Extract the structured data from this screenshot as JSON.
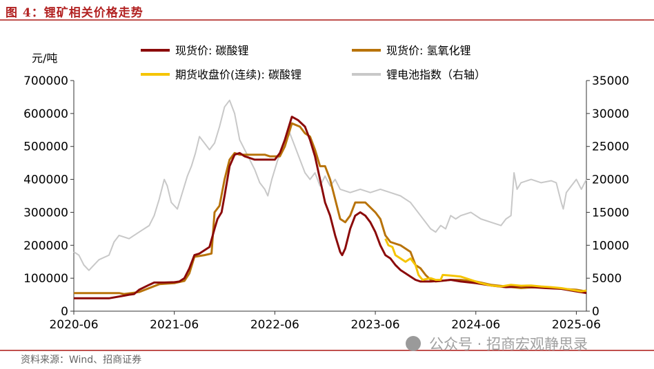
{
  "figure": {
    "title": "图 4：锂矿相关价格走势",
    "source": "资料来源：Wind、招商证券",
    "watermark": "公众号 · 招商宏观静思录"
  },
  "chart_data": {
    "type": "line",
    "y_unit_label": "元/吨",
    "ylim_left": [
      0,
      700000
    ],
    "ylim_right": [
      0,
      35000
    ],
    "left_ticks": [
      "0",
      "100000",
      "200000",
      "300000",
      "400000",
      "500000",
      "600000",
      "700000"
    ],
    "right_ticks": [
      "0",
      "5000",
      "10000",
      "15000",
      "20000",
      "25000",
      "30000",
      "35000"
    ],
    "x_range": [
      2020.45,
      2025.55
    ],
    "x_ticks": [
      {
        "label": "2020-06",
        "x": 2020.45
      },
      {
        "label": "2021-06",
        "x": 2021.45
      },
      {
        "label": "2022-06",
        "x": 2022.45
      },
      {
        "label": "2023-06",
        "x": 2023.45
      },
      {
        "label": "2024-06",
        "x": 2024.45
      },
      {
        "label": "2025-06",
        "x": 2025.45
      }
    ],
    "series": [
      {
        "name": "锂电池指数（右轴）",
        "axis": "right",
        "color": "#c8c8c8",
        "width": 2,
        "points": [
          [
            2020.45,
            9000
          ],
          [
            2020.5,
            8500
          ],
          [
            2020.55,
            7000
          ],
          [
            2020.6,
            6200
          ],
          [
            2020.7,
            7800
          ],
          [
            2020.8,
            8500
          ],
          [
            2020.85,
            10500
          ],
          [
            2020.9,
            11500
          ],
          [
            2021.0,
            11000
          ],
          [
            2021.1,
            12000
          ],
          [
            2021.2,
            13000
          ],
          [
            2021.25,
            14500
          ],
          [
            2021.3,
            17000
          ],
          [
            2021.35,
            20000
          ],
          [
            2021.38,
            19000
          ],
          [
            2021.42,
            16500
          ],
          [
            2021.48,
            15500
          ],
          [
            2021.52,
            17500
          ],
          [
            2021.58,
            20500
          ],
          [
            2021.62,
            22000
          ],
          [
            2021.66,
            24000
          ],
          [
            2021.7,
            26500
          ],
          [
            2021.75,
            25500
          ],
          [
            2021.8,
            24500
          ],
          [
            2021.85,
            25500
          ],
          [
            2021.9,
            28000
          ],
          [
            2021.95,
            31000
          ],
          [
            2022.0,
            32000
          ],
          [
            2022.05,
            30000
          ],
          [
            2022.1,
            26000
          ],
          [
            2022.15,
            24500
          ],
          [
            2022.2,
            23000
          ],
          [
            2022.25,
            21500
          ],
          [
            2022.3,
            19500
          ],
          [
            2022.35,
            18500
          ],
          [
            2022.38,
            17500
          ],
          [
            2022.42,
            20000
          ],
          [
            2022.48,
            23000
          ],
          [
            2022.55,
            25500
          ],
          [
            2022.6,
            27000
          ],
          [
            2022.65,
            25000
          ],
          [
            2022.7,
            23000
          ],
          [
            2022.75,
            21000
          ],
          [
            2022.8,
            20000
          ],
          [
            2022.85,
            21000
          ],
          [
            2022.9,
            19000
          ],
          [
            2022.95,
            20500
          ],
          [
            2023.0,
            19000
          ],
          [
            2023.05,
            20000
          ],
          [
            2023.1,
            18500
          ],
          [
            2023.2,
            18000
          ],
          [
            2023.3,
            18500
          ],
          [
            2023.4,
            18000
          ],
          [
            2023.5,
            18500
          ],
          [
            2023.6,
            18000
          ],
          [
            2023.7,
            17500
          ],
          [
            2023.8,
            16500
          ],
          [
            2023.9,
            14500
          ],
          [
            2024.0,
            12500
          ],
          [
            2024.05,
            12000
          ],
          [
            2024.1,
            13000
          ],
          [
            2024.15,
            12500
          ],
          [
            2024.2,
            14500
          ],
          [
            2024.25,
            14000
          ],
          [
            2024.3,
            14500
          ],
          [
            2024.4,
            15000
          ],
          [
            2024.5,
            14000
          ],
          [
            2024.6,
            13500
          ],
          [
            2024.7,
            13000
          ],
          [
            2024.75,
            14000
          ],
          [
            2024.8,
            14500
          ],
          [
            2024.83,
            21000
          ],
          [
            2024.86,
            18500
          ],
          [
            2024.9,
            19500
          ],
          [
            2025.0,
            20000
          ],
          [
            2025.1,
            19500
          ],
          [
            2025.2,
            19800
          ],
          [
            2025.25,
            19500
          ],
          [
            2025.3,
            16500
          ],
          [
            2025.32,
            15500
          ],
          [
            2025.35,
            18000
          ],
          [
            2025.4,
            19000
          ],
          [
            2025.45,
            20000
          ],
          [
            2025.5,
            18500
          ],
          [
            2025.55,
            20000
          ]
        ]
      },
      {
        "name": "现货价: 氢氧化锂",
        "axis": "left",
        "color": "#b8730a",
        "width": 3,
        "points": [
          [
            2020.45,
            55000
          ],
          [
            2020.9,
            55000
          ],
          [
            2020.95,
            52000
          ],
          [
            2021.1,
            58000
          ],
          [
            2021.3,
            82000
          ],
          [
            2021.45,
            85000
          ],
          [
            2021.55,
            92000
          ],
          [
            2021.6,
            115000
          ],
          [
            2021.65,
            165000
          ],
          [
            2021.75,
            170000
          ],
          [
            2021.82,
            175000
          ],
          [
            2021.85,
            300000
          ],
          [
            2021.9,
            320000
          ],
          [
            2021.95,
            400000
          ],
          [
            2022.0,
            460000
          ],
          [
            2022.05,
            480000
          ],
          [
            2022.1,
            475000
          ],
          [
            2022.3,
            475000
          ],
          [
            2022.35,
            475000
          ],
          [
            2022.4,
            470000
          ],
          [
            2022.45,
            470000
          ],
          [
            2022.5,
            470000
          ],
          [
            2022.55,
            500000
          ],
          [
            2022.62,
            570000
          ],
          [
            2022.7,
            560000
          ],
          [
            2022.75,
            540000
          ],
          [
            2022.8,
            530000
          ],
          [
            2022.85,
            490000
          ],
          [
            2022.9,
            440000
          ],
          [
            2022.95,
            440000
          ],
          [
            2023.0,
            400000
          ],
          [
            2023.05,
            340000
          ],
          [
            2023.1,
            280000
          ],
          [
            2023.15,
            270000
          ],
          [
            2023.2,
            290000
          ],
          [
            2023.25,
            330000
          ],
          [
            2023.35,
            330000
          ],
          [
            2023.45,
            300000
          ],
          [
            2023.5,
            280000
          ],
          [
            2023.55,
            230000
          ],
          [
            2023.6,
            210000
          ],
          [
            2023.7,
            200000
          ],
          [
            2023.8,
            180000
          ],
          [
            2023.85,
            140000
          ],
          [
            2023.9,
            130000
          ],
          [
            2023.95,
            110000
          ],
          [
            2024.0,
            95000
          ],
          [
            2024.05,
            90000
          ],
          [
            2024.2,
            95000
          ],
          [
            2024.3,
            95000
          ],
          [
            2024.45,
            90000
          ],
          [
            2024.6,
            80000
          ],
          [
            2024.75,
            75000
          ],
          [
            2024.9,
            70000
          ],
          [
            2025.0,
            72000
          ],
          [
            2025.15,
            72000
          ],
          [
            2025.3,
            68000
          ],
          [
            2025.45,
            65000
          ],
          [
            2025.55,
            60000
          ]
        ]
      },
      {
        "name": "现货价: 碳酸锂",
        "axis": "left",
        "color": "#8b0a0a",
        "width": 3,
        "points": [
          [
            2020.45,
            39000
          ],
          [
            2020.6,
            39000
          ],
          [
            2020.8,
            39000
          ],
          [
            2020.95,
            47000
          ],
          [
            2021.0,
            50000
          ],
          [
            2021.05,
            52000
          ],
          [
            2021.1,
            65000
          ],
          [
            2021.2,
            80000
          ],
          [
            2021.25,
            87000
          ],
          [
            2021.35,
            87000
          ],
          [
            2021.45,
            88000
          ],
          [
            2021.5,
            90000
          ],
          [
            2021.55,
            100000
          ],
          [
            2021.6,
            130000
          ],
          [
            2021.65,
            170000
          ],
          [
            2021.7,
            175000
          ],
          [
            2021.75,
            185000
          ],
          [
            2021.8,
            195000
          ],
          [
            2021.85,
            250000
          ],
          [
            2021.88,
            280000
          ],
          [
            2021.92,
            300000
          ],
          [
            2021.95,
            350000
          ],
          [
            2022.0,
            440000
          ],
          [
            2022.05,
            475000
          ],
          [
            2022.1,
            480000
          ],
          [
            2022.15,
            470000
          ],
          [
            2022.2,
            465000
          ],
          [
            2022.25,
            460000
          ],
          [
            2022.35,
            460000
          ],
          [
            2022.45,
            460000
          ],
          [
            2022.5,
            480000
          ],
          [
            2022.55,
            520000
          ],
          [
            2022.62,
            590000
          ],
          [
            2022.68,
            580000
          ],
          [
            2022.75,
            560000
          ],
          [
            2022.8,
            520000
          ],
          [
            2022.85,
            470000
          ],
          [
            2022.9,
            400000
          ],
          [
            2022.95,
            330000
          ],
          [
            2023.0,
            290000
          ],
          [
            2023.05,
            230000
          ],
          [
            2023.1,
            180000
          ],
          [
            2023.12,
            170000
          ],
          [
            2023.15,
            190000
          ],
          [
            2023.2,
            250000
          ],
          [
            2023.25,
            290000
          ],
          [
            2023.3,
            300000
          ],
          [
            2023.35,
            290000
          ],
          [
            2023.4,
            270000
          ],
          [
            2023.45,
            240000
          ],
          [
            2023.5,
            200000
          ],
          [
            2023.55,
            170000
          ],
          [
            2023.6,
            160000
          ],
          [
            2023.65,
            140000
          ],
          [
            2023.7,
            125000
          ],
          [
            2023.75,
            115000
          ],
          [
            2023.8,
            105000
          ],
          [
            2023.85,
            95000
          ],
          [
            2023.9,
            90000
          ],
          [
            2024.0,
            90000
          ],
          [
            2024.1,
            92000
          ],
          [
            2024.2,
            95000
          ],
          [
            2024.3,
            90000
          ],
          [
            2024.45,
            85000
          ],
          [
            2024.6,
            78000
          ],
          [
            2024.75,
            73000
          ],
          [
            2024.9,
            75000
          ],
          [
            2025.0,
            73000
          ],
          [
            2025.15,
            70000
          ],
          [
            2025.3,
            68000
          ],
          [
            2025.45,
            60000
          ],
          [
            2025.55,
            55000
          ]
        ]
      },
      {
        "name": "期货收盘价(连续): 碳酸锂",
        "axis": "left",
        "color": "#f5c400",
        "width": 3,
        "points": [
          [
            2023.55,
            220000
          ],
          [
            2023.58,
            200000
          ],
          [
            2023.62,
            195000
          ],
          [
            2023.65,
            170000
          ],
          [
            2023.7,
            160000
          ],
          [
            2023.75,
            150000
          ],
          [
            2023.8,
            160000
          ],
          [
            2023.85,
            140000
          ],
          [
            2023.88,
            110000
          ],
          [
            2023.92,
            95000
          ],
          [
            2024.0,
            100000
          ],
          [
            2024.05,
            95000
          ],
          [
            2024.1,
            95000
          ],
          [
            2024.12,
            110000
          ],
          [
            2024.2,
            108000
          ],
          [
            2024.3,
            105000
          ],
          [
            2024.4,
            95000
          ],
          [
            2024.5,
            85000
          ],
          [
            2024.6,
            78000
          ],
          [
            2024.7,
            75000
          ],
          [
            2024.8,
            80000
          ],
          [
            2024.9,
            77000
          ],
          [
            2025.0,
            78000
          ],
          [
            2025.1,
            75000
          ],
          [
            2025.2,
            73000
          ],
          [
            2025.3,
            70000
          ],
          [
            2025.4,
            65000
          ],
          [
            2025.5,
            60000
          ],
          [
            2025.55,
            63000
          ]
        ]
      }
    ],
    "legend": [
      {
        "name": "现货价: 碳酸锂",
        "color": "#8b0a0a"
      },
      {
        "name": "现货价: 氢氧化锂",
        "color": "#b8730a"
      },
      {
        "name": "期货收盘价(连续): 碳酸锂",
        "color": "#f5c400"
      },
      {
        "name": "锂电池指数（右轴）",
        "color": "#c8c8c8"
      }
    ]
  }
}
